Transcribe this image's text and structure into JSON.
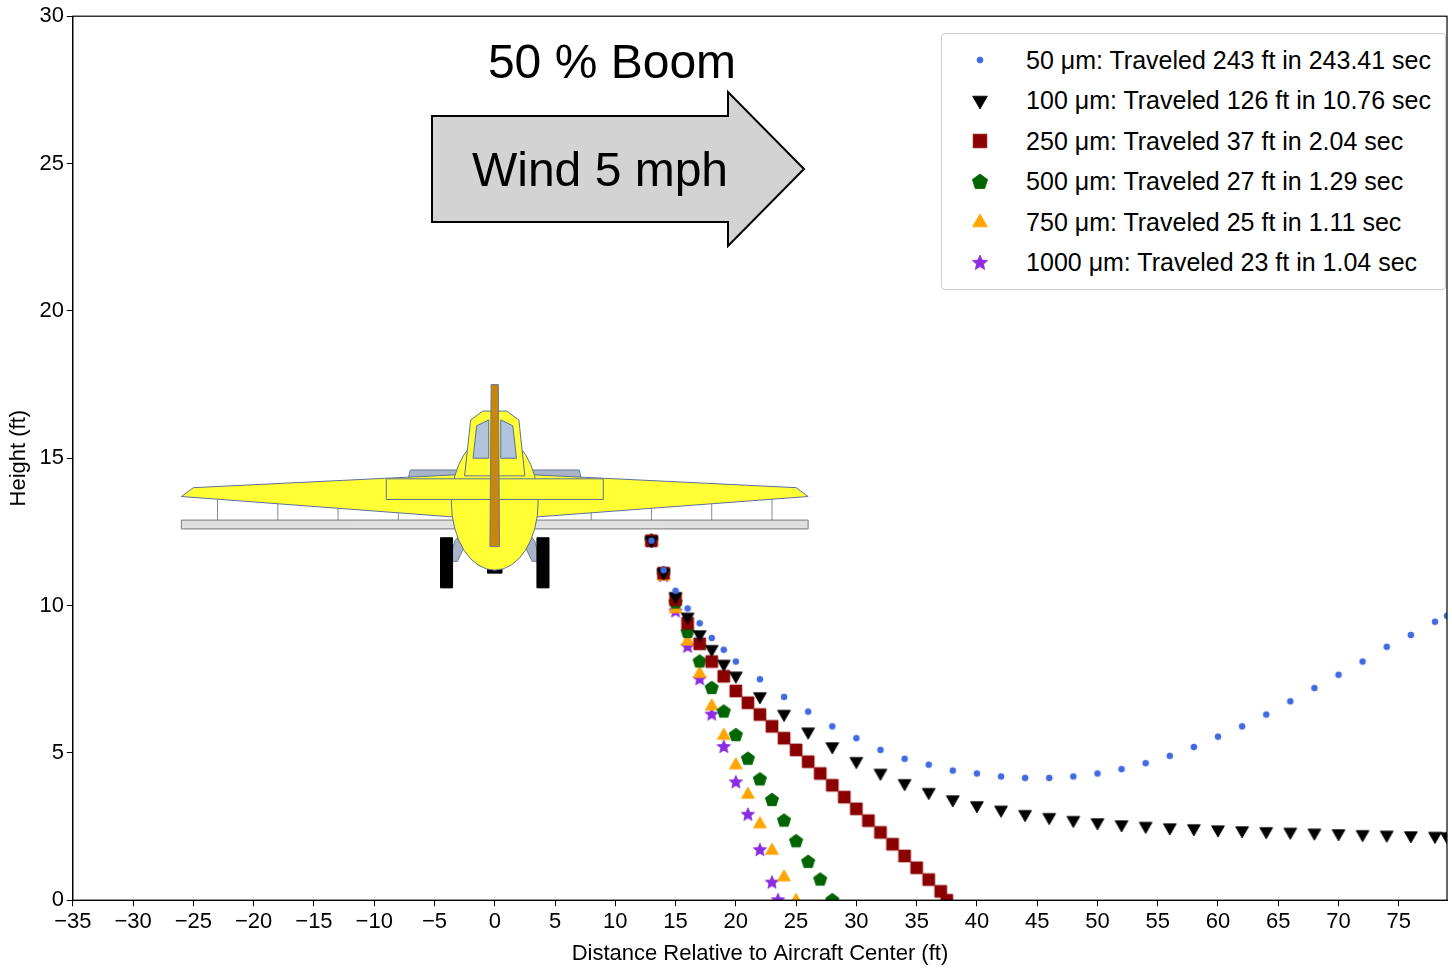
{
  "chart_data": {
    "type": "scatter",
    "title": "50 % Boom",
    "annotations": [
      "Wind 5 mph"
    ],
    "xlabel": "Distance Relative to Aircraft Center (ft)",
    "ylabel": "Height (ft)",
    "xlim": [
      -35,
      79
    ],
    "xticks": [
      {
        "value": -35,
        "label": "−35"
      },
      {
        "value": -30,
        "label": "−30"
      },
      {
        "value": -25,
        "label": "−25"
      },
      {
        "value": -20,
        "label": "−20"
      },
      {
        "value": -15,
        "label": "−15"
      },
      {
        "value": -10,
        "label": "−10"
      },
      {
        "value": -5,
        "label": "−5"
      },
      0,
      5,
      10,
      15,
      20,
      25,
      30,
      35,
      40,
      45,
      50,
      55,
      60,
      65,
      70,
      75
    ],
    "ylim": [
      0,
      30
    ],
    "yticks": [
      0,
      5,
      10,
      15,
      20,
      25,
      30
    ],
    "grid": false,
    "legend": "upper right",
    "series": [
      {
        "name": "50 μm: Traveled 243 ft in 243.41 sec",
        "color": "#4169e1",
        "marker": "circle",
        "x": [
          13,
          14,
          15,
          16,
          17,
          18,
          19,
          20,
          22,
          24,
          26,
          28,
          30,
          32,
          34,
          36,
          38,
          40,
          42,
          44,
          46,
          48,
          50,
          52,
          54,
          56,
          58,
          60,
          62,
          64,
          66,
          68,
          70,
          72,
          74,
          76,
          78,
          79
        ],
        "values": [
          12.2,
          11.2,
          10.5,
          9.9,
          9.4,
          8.9,
          8.5,
          8.1,
          7.5,
          6.9,
          6.4,
          5.9,
          5.5,
          5.1,
          4.8,
          4.6,
          4.4,
          4.3,
          4.2,
          4.15,
          4.15,
          4.2,
          4.3,
          4.45,
          4.65,
          4.9,
          5.2,
          5.55,
          5.9,
          6.3,
          6.75,
          7.2,
          7.65,
          8.1,
          8.6,
          9.0,
          9.45,
          9.65
        ]
      },
      {
        "name": "100 μm: Traveled 126 ft in 10.76 sec",
        "color": "#000000",
        "marker": "triangle_down",
        "x": [
          13,
          14,
          15,
          16,
          17,
          18,
          19,
          20,
          22,
          24,
          26,
          28,
          30,
          32,
          34,
          36,
          38,
          40,
          42,
          44,
          46,
          48,
          50,
          52,
          54,
          56,
          58,
          60,
          62,
          64,
          66,
          68,
          70,
          72,
          74,
          76,
          78,
          79
        ],
        "values": [
          12.2,
          11.1,
          10.3,
          9.6,
          9.0,
          8.5,
          8.0,
          7.6,
          6.9,
          6.3,
          5.7,
          5.2,
          4.7,
          4.3,
          3.95,
          3.65,
          3.4,
          3.2,
          3.05,
          2.9,
          2.8,
          2.7,
          2.62,
          2.55,
          2.5,
          2.45,
          2.42,
          2.38,
          2.35,
          2.32,
          2.3,
          2.27,
          2.25,
          2.22,
          2.2,
          2.18,
          2.16,
          2.15
        ]
      },
      {
        "name": "250 μm: Traveled 37 ft in 2.04 sec",
        "color": "#8b0000",
        "marker": "square",
        "x": [
          13,
          14,
          15,
          16,
          17,
          18,
          19,
          20,
          21,
          22,
          23,
          24,
          25,
          26,
          27,
          28,
          29,
          30,
          31,
          32,
          33,
          34,
          35,
          36,
          37,
          37.5
        ],
        "values": [
          12.2,
          11.1,
          10.2,
          9.4,
          8.7,
          8.1,
          7.6,
          7.1,
          6.7,
          6.3,
          5.9,
          5.5,
          5.1,
          4.7,
          4.3,
          3.9,
          3.5,
          3.1,
          2.7,
          2.3,
          1.9,
          1.5,
          1.1,
          0.7,
          0.3,
          0
        ]
      },
      {
        "name": "500 μm: Traveled 27 ft in 1.29 sec",
        "color": "#006400",
        "marker": "pentagon",
        "x": [
          13,
          14,
          15,
          16,
          17,
          18,
          19,
          20,
          21,
          22,
          23,
          24,
          25,
          26,
          27,
          28
        ],
        "values": [
          12.2,
          11.1,
          10.1,
          9.1,
          8.1,
          7.2,
          6.4,
          5.6,
          4.8,
          4.1,
          3.4,
          2.7,
          2.0,
          1.3,
          0.7,
          0
        ]
      },
      {
        "name": "750 μm: Traveled 25 ft in 1.11 sec",
        "color": "#ffa500",
        "marker": "triangle",
        "x": [
          13,
          14,
          15,
          16,
          17,
          18,
          19,
          20,
          21,
          22,
          23,
          24,
          25
        ],
        "values": [
          12.2,
          11.0,
          9.9,
          8.8,
          7.7,
          6.6,
          5.6,
          4.6,
          3.6,
          2.6,
          1.7,
          0.8,
          0
        ]
      },
      {
        "name": "1000 μm: Traveled 23 ft in 1.04 sec",
        "color": "#8a2be2",
        "marker": "star",
        "x": [
          13,
          14,
          15,
          16,
          17,
          18,
          19,
          20,
          21,
          22,
          23,
          23.5
        ],
        "values": [
          12.2,
          11.0,
          9.8,
          8.6,
          7.5,
          6.3,
          5.2,
          4.0,
          2.9,
          1.7,
          0.6,
          0
        ]
      }
    ]
  }
}
